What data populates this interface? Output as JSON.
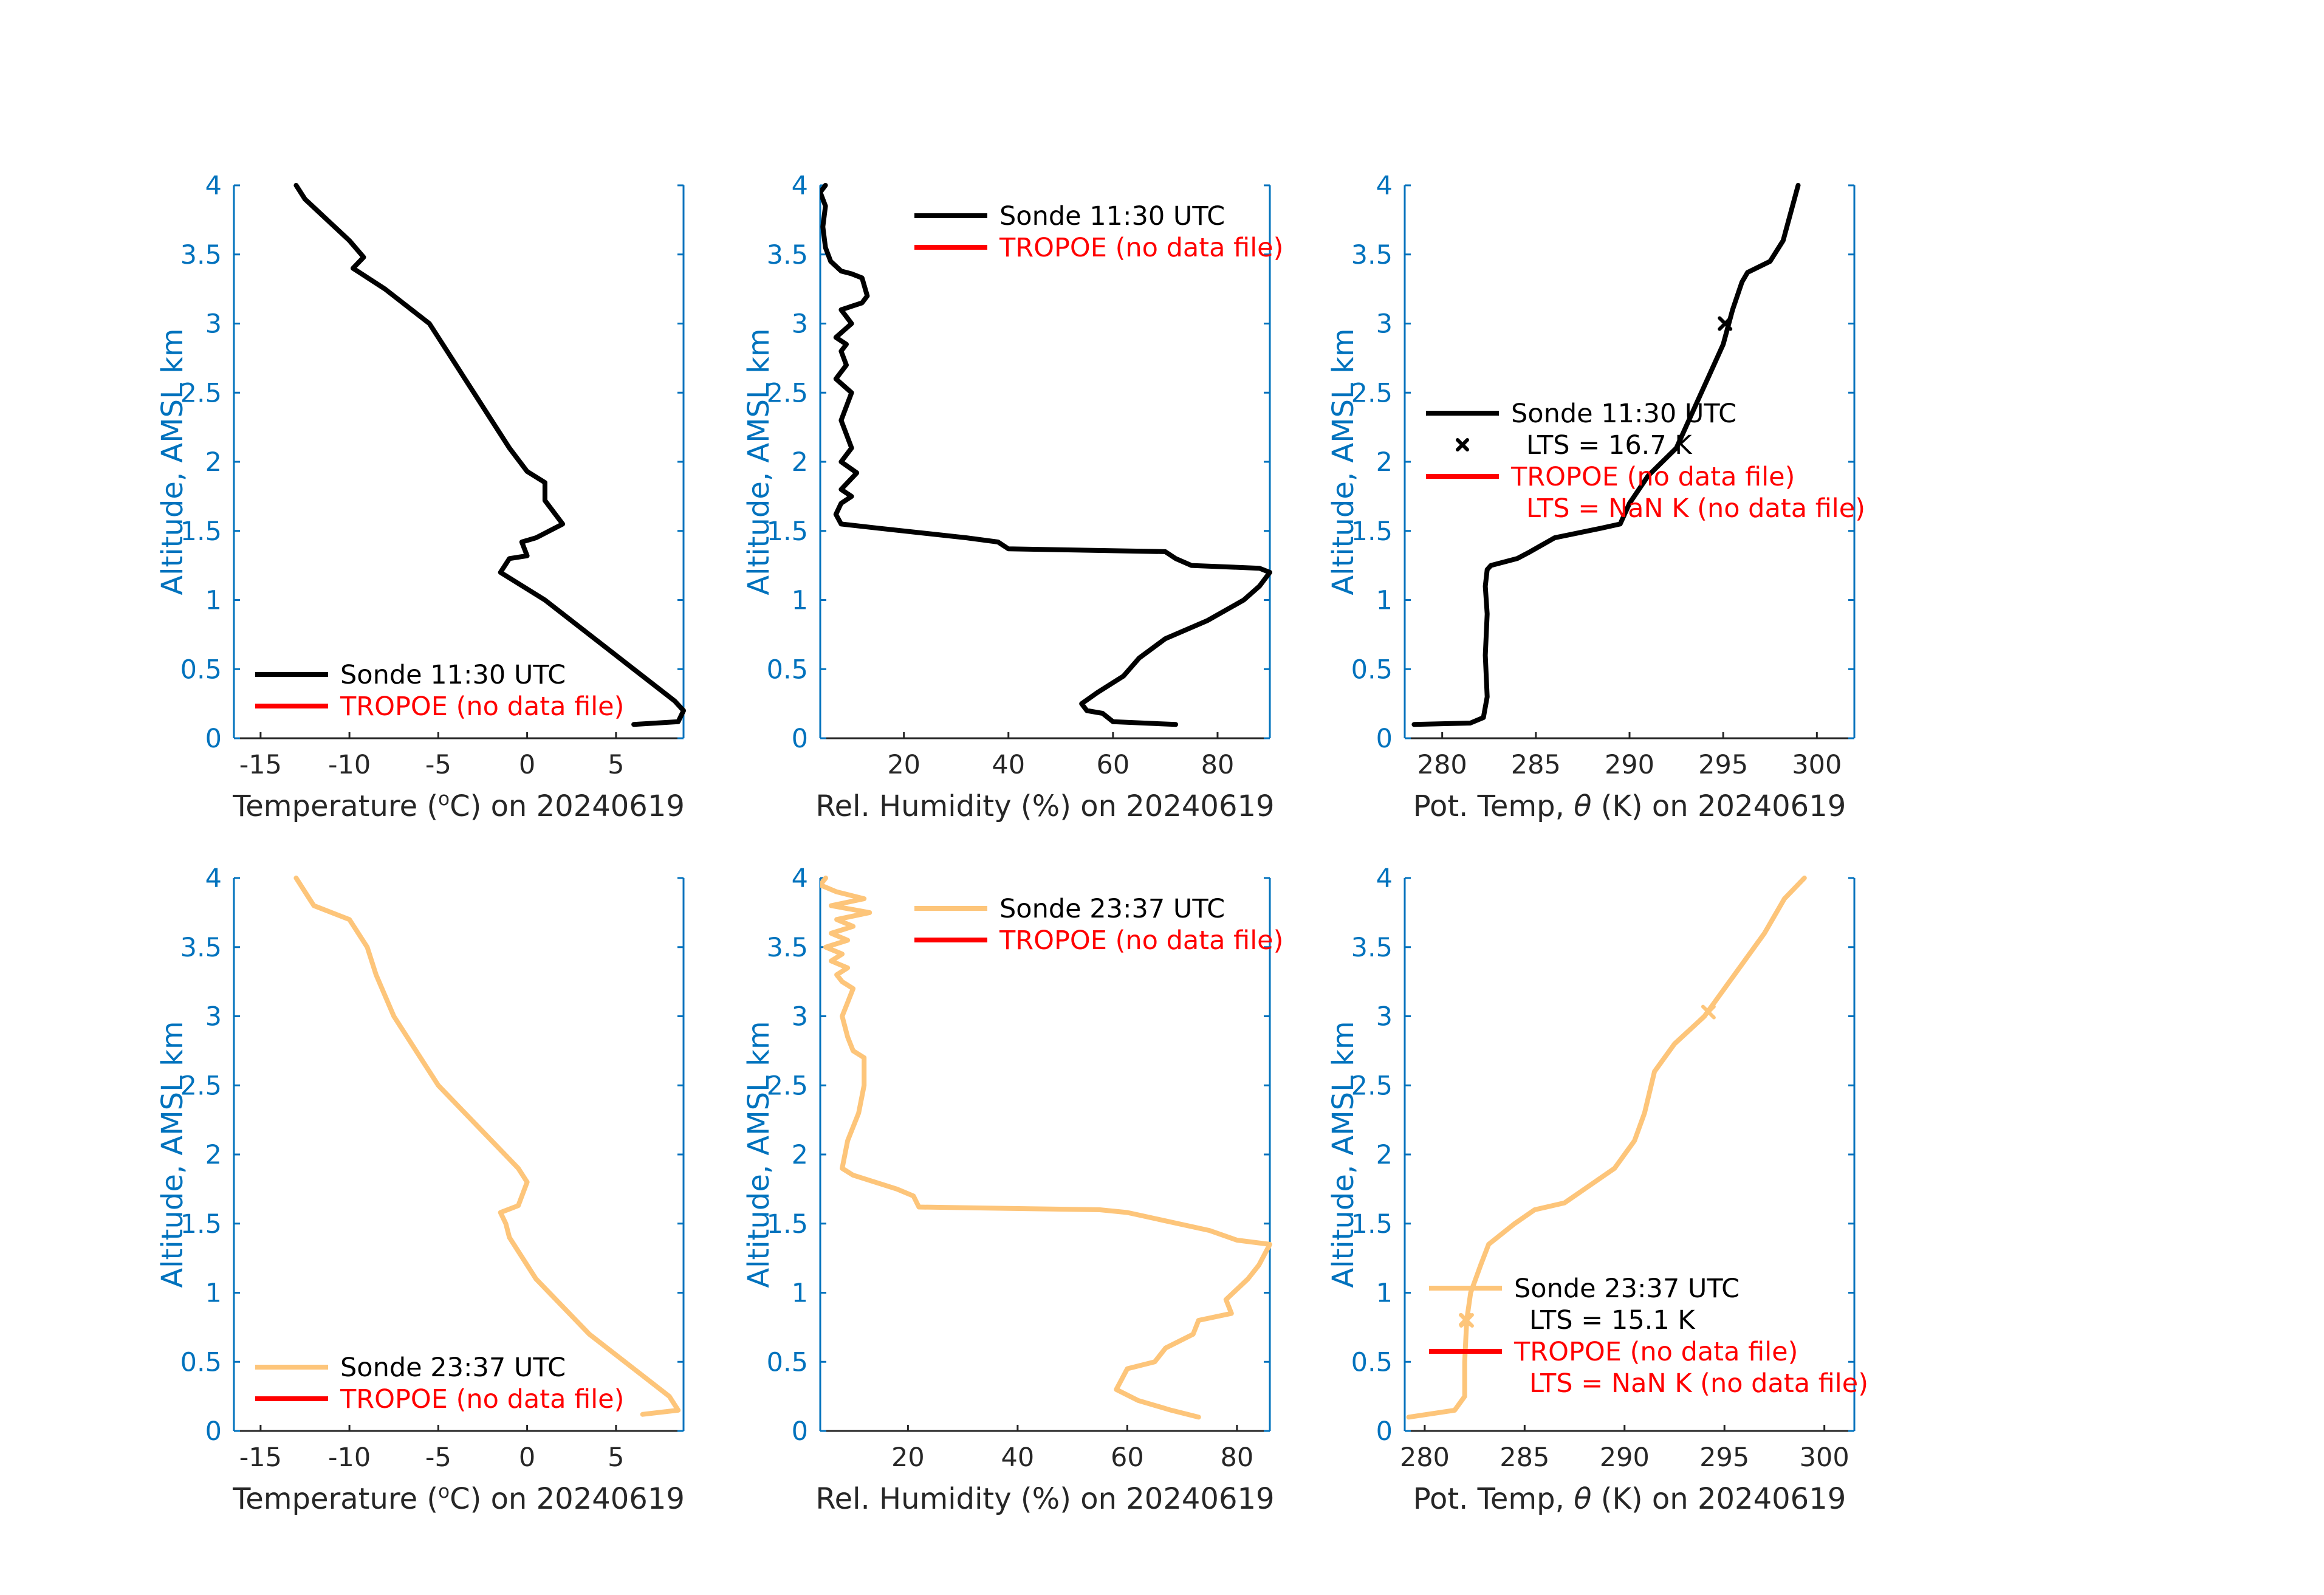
{
  "colors": {
    "axis": "#0072BD",
    "morning_sonde": "#000000",
    "evening_sonde": "#FDC57A",
    "tropoe": "#FF0000",
    "text": "#262626",
    "background": "#FFFFFF"
  },
  "chart_data": [
    {
      "id": "temp-1130",
      "type": "line",
      "xlabel": "Temperature (°C) on 20240619",
      "ylabel": "Altitude, AMSL km",
      "xlim": [
        -16.5,
        8.8
      ],
      "ylim": [
        0,
        4
      ],
      "xticks": [
        -15,
        -10,
        -5,
        0,
        5
      ],
      "xtick_labels": [
        "-15",
        "-10",
        "-5",
        "0",
        "5"
      ],
      "yticks": [
        0,
        0.5,
        1,
        1.5,
        2,
        2.5,
        3,
        3.5,
        4
      ],
      "ytick_labels": [
        "0",
        "0.5",
        "1",
        "1.5",
        "2",
        "2.5",
        "3",
        "3.5",
        "4"
      ],
      "legend": {
        "position": "bottom-right",
        "entries": [
          {
            "text": "Sonde 11:30 UTC",
            "line_color": "#000000",
            "text_color": "#000000"
          },
          {
            "text": "TROPOE (no data file)",
            "line_color": "#FF0000",
            "text_color": "#FF0000"
          }
        ]
      },
      "series": [
        {
          "name": "Sonde 11:30 UTC",
          "color": "#000000",
          "x": [
            6.0,
            8.5,
            8.8,
            8.3,
            6.0,
            3.5,
            1.0,
            -1.5,
            -1.0,
            0.0,
            -0.3,
            0.5,
            2.0,
            1.0,
            1.0,
            0.0,
            -1.0,
            -2.0,
            -3.0,
            -3.5,
            -4.5,
            -5.5,
            -6.5,
            -8.0,
            -9.8,
            -9.2,
            -10.0,
            -12.5,
            -13.0
          ],
          "y": [
            0.1,
            0.12,
            0.2,
            0.27,
            0.5,
            0.75,
            1.0,
            1.2,
            1.3,
            1.32,
            1.42,
            1.45,
            1.55,
            1.72,
            1.85,
            1.93,
            2.1,
            2.3,
            2.5,
            2.6,
            2.8,
            3.0,
            3.1,
            3.25,
            3.4,
            3.48,
            3.6,
            3.9,
            4.0
          ]
        }
      ]
    },
    {
      "id": "rh-1130",
      "type": "line",
      "xlabel": "Rel. Humidity (%) on 20240619",
      "ylabel": "Altitude, AMSL km",
      "xlim": [
        4,
        90
      ],
      "ylim": [
        0,
        4
      ],
      "xticks": [
        20,
        40,
        60,
        80
      ],
      "xtick_labels": [
        "20",
        "40",
        "60",
        "80"
      ],
      "yticks": [
        0,
        0.5,
        1,
        1.5,
        2,
        2.5,
        3,
        3.5,
        4
      ],
      "ytick_labels": [
        "0",
        "0.5",
        "1",
        "1.5",
        "2",
        "2.5",
        "3",
        "3.5",
        "4"
      ],
      "legend": {
        "position": "top-right",
        "entries": [
          {
            "text": "Sonde 11:30 UTC",
            "line_color": "#000000",
            "text_color": "#000000"
          },
          {
            "text": "TROPOE (no data file)",
            "line_color": "#FF0000",
            "text_color": "#FF0000"
          }
        ]
      },
      "series": [
        {
          "name": "Sonde 11:30 UTC",
          "color": "#000000",
          "x": [
            72,
            60,
            58,
            55,
            54,
            57,
            62,
            65,
            70,
            78,
            85,
            88,
            90,
            88,
            75,
            72,
            70,
            40,
            38,
            32,
            15,
            8,
            7,
            8,
            10,
            8,
            11,
            8,
            10,
            8,
            10,
            7,
            9,
            8,
            9,
            7,
            10,
            8,
            12,
            13,
            12,
            10,
            8,
            6,
            5,
            4.5,
            5,
            4,
            5
          ],
          "y": [
            0.1,
            0.12,
            0.18,
            0.2,
            0.25,
            0.33,
            0.45,
            0.58,
            0.72,
            0.85,
            1.0,
            1.1,
            1.2,
            1.23,
            1.25,
            1.3,
            1.35,
            1.37,
            1.42,
            1.45,
            1.52,
            1.55,
            1.62,
            1.7,
            1.75,
            1.8,
            1.92,
            2.0,
            2.1,
            2.3,
            2.5,
            2.6,
            2.7,
            2.8,
            2.85,
            2.9,
            3.0,
            3.1,
            3.15,
            3.2,
            3.33,
            3.36,
            3.38,
            3.45,
            3.55,
            3.7,
            3.85,
            3.95,
            4.0
          ]
        }
      ]
    },
    {
      "id": "theta-1130",
      "type": "line",
      "xlabel": "Pot. Temp, θ (K) on 20240619",
      "ylabel": "Altitude, AMSL km",
      "xlim": [
        278,
        302
      ],
      "ylim": [
        0,
        4
      ],
      "xticks": [
        280,
        285,
        290,
        295,
        300
      ],
      "xtick_labels": [
        "280",
        "285",
        "290",
        "295",
        "300"
      ],
      "yticks": [
        0,
        0.5,
        1,
        1.5,
        2,
        2.5,
        3,
        3.5,
        4
      ],
      "ytick_labels": [
        "0",
        "0.5",
        "1",
        "1.5",
        "2",
        "2.5",
        "3",
        "3.5",
        "4"
      ],
      "legend": {
        "position": "middle-left",
        "entries": [
          {
            "text": "Sonde 11:30 UTC",
            "line_color": "#000000",
            "text_color": "#000000",
            "marker": "line"
          },
          {
            "text": "LTS = 16.7 K",
            "line_color": "#000000",
            "text_color": "#000000",
            "marker": "x"
          },
          {
            "text": "TROPOE (no data file)",
            "line_color": "#FF0000",
            "text_color": "#FF0000",
            "marker": "line"
          },
          {
            "text": "LTS = NaN K (no data file)",
            "line_color": "#FF0000",
            "text_color": "#FF0000",
            "marker": "none"
          }
        ]
      },
      "markers": [
        {
          "x": 295.1,
          "y": 3.0,
          "shape": "x",
          "color": "#000000"
        }
      ],
      "series": [
        {
          "name": "Sonde 11:30 UTC",
          "color": "#000000",
          "x": [
            278.5,
            281.5,
            282.2,
            282.4,
            282.3,
            282.4,
            282.3,
            282.4,
            282.6,
            284.0,
            284.7,
            286.0,
            288.5,
            289.5,
            290.0,
            291.0,
            292.5,
            293.5,
            294.5,
            295.0,
            295.5,
            296.0,
            296.3,
            297.5,
            298.2,
            298.8,
            299.0
          ],
          "y": [
            0.1,
            0.11,
            0.15,
            0.3,
            0.6,
            0.9,
            1.1,
            1.22,
            1.25,
            1.3,
            1.35,
            1.45,
            1.52,
            1.55,
            1.7,
            1.9,
            2.1,
            2.4,
            2.7,
            2.85,
            3.1,
            3.3,
            3.37,
            3.45,
            3.6,
            3.9,
            4.0
          ]
        }
      ]
    },
    {
      "id": "temp-2337",
      "type": "line",
      "xlabel": "Temperature (°C) on 20240619",
      "ylabel": "Altitude, AMSL km",
      "xlim": [
        -16.5,
        8.8
      ],
      "ylim": [
        0,
        4
      ],
      "xticks": [
        -15,
        -10,
        -5,
        0,
        5
      ],
      "xtick_labels": [
        "-15",
        "-10",
        "-5",
        "0",
        "5"
      ],
      "yticks": [
        0,
        0.5,
        1,
        1.5,
        2,
        2.5,
        3,
        3.5,
        4
      ],
      "ytick_labels": [
        "0",
        "0.5",
        "1",
        "1.5",
        "2",
        "2.5",
        "3",
        "3.5",
        "4"
      ],
      "legend": {
        "position": "bottom-right",
        "entries": [
          {
            "text": "Sonde 23:37 UTC",
            "line_color": "#FDC57A",
            "text_color": "#000000"
          },
          {
            "text": "TROPOE (no data file)",
            "line_color": "#FF0000",
            "text_color": "#FF0000"
          }
        ]
      },
      "series": [
        {
          "name": "Sonde 23:37 UTC",
          "color": "#FDC57A",
          "x": [
            6.5,
            8.5,
            8.0,
            6.0,
            3.5,
            2.0,
            0.5,
            -0.5,
            -1.0,
            -1.2,
            -1.5,
            -0.5,
            0.0,
            -0.5,
            -2.0,
            -3.5,
            -5.0,
            -6.0,
            -7.5,
            -8.5,
            -9.0,
            -10.0,
            -12.0,
            -12.5,
            -13.0
          ],
          "y": [
            0.12,
            0.15,
            0.25,
            0.45,
            0.7,
            0.9,
            1.1,
            1.3,
            1.4,
            1.5,
            1.58,
            1.63,
            1.8,
            1.9,
            2.1,
            2.3,
            2.5,
            2.7,
            3.0,
            3.3,
            3.5,
            3.7,
            3.8,
            3.9,
            4.0
          ]
        }
      ]
    },
    {
      "id": "rh-2337",
      "type": "line",
      "xlabel": "Rel. Humidity (%) on 20240619",
      "ylabel": "Altitude, AMSL km",
      "xlim": [
        4,
        86
      ],
      "ylim": [
        0,
        4
      ],
      "xticks": [
        20,
        40,
        60,
        80
      ],
      "xtick_labels": [
        "20",
        "40",
        "60",
        "80"
      ],
      "yticks": [
        0,
        0.5,
        1,
        1.5,
        2,
        2.5,
        3,
        3.5,
        4
      ],
      "ytick_labels": [
        "0",
        "0.5",
        "1",
        "1.5",
        "2",
        "2.5",
        "3",
        "3.5",
        "4"
      ],
      "legend": {
        "position": "top-right",
        "entries": [
          {
            "text": "Sonde 23:37 UTC",
            "line_color": "#FDC57A",
            "text_color": "#000000"
          },
          {
            "text": "TROPOE (no data file)",
            "line_color": "#FF0000",
            "text_color": "#FF0000"
          }
        ]
      },
      "series": [
        {
          "name": "Sonde 23:37 UTC",
          "color": "#FDC57A",
          "x": [
            73,
            68,
            62,
            58,
            60,
            65,
            67,
            72,
            73,
            79,
            78,
            82,
            84,
            86,
            80,
            75,
            60,
            55,
            22,
            21,
            18,
            10,
            8,
            9,
            11,
            12,
            12,
            10,
            9,
            8,
            9,
            10,
            8,
            7,
            9,
            6,
            8,
            5,
            9,
            6,
            10,
            7,
            13,
            6,
            12,
            7,
            4,
            5
          ],
          "y": [
            0.1,
            0.15,
            0.22,
            0.3,
            0.45,
            0.5,
            0.6,
            0.7,
            0.8,
            0.85,
            0.95,
            1.1,
            1.2,
            1.35,
            1.38,
            1.45,
            1.58,
            1.6,
            1.62,
            1.7,
            1.75,
            1.85,
            1.9,
            2.1,
            2.3,
            2.5,
            2.7,
            2.75,
            2.85,
            3.0,
            3.1,
            3.2,
            3.25,
            3.3,
            3.35,
            3.4,
            3.45,
            3.5,
            3.55,
            3.6,
            3.65,
            3.7,
            3.75,
            3.8,
            3.85,
            3.9,
            3.95,
            4.0
          ]
        }
      ]
    },
    {
      "id": "theta-2337",
      "type": "line",
      "xlabel": "Pot. Temp, θ (K) on 20240619",
      "ylabel": "Altitude, AMSL km",
      "xlim": [
        279,
        301.5
      ],
      "ylim": [
        0,
        4
      ],
      "xticks": [
        280,
        285,
        290,
        295,
        300
      ],
      "xtick_labels": [
        "280",
        "285",
        "290",
        "295",
        "300"
      ],
      "yticks": [
        0,
        0.5,
        1,
        1.5,
        2,
        2.5,
        3,
        3.5,
        4
      ],
      "ytick_labels": [
        "0",
        "0.5",
        "1",
        "1.5",
        "2",
        "2.5",
        "3",
        "3.5",
        "4"
      ],
      "legend": {
        "position": "bottom-left",
        "entries": [
          {
            "text": "Sonde 23:37 UTC",
            "line_color": "#FDC57A",
            "text_color": "#000000",
            "marker": "line"
          },
          {
            "text": "LTS = 15.1 K",
            "line_color": "#FDC57A",
            "text_color": "#000000",
            "marker": "x"
          },
          {
            "text": "TROPOE (no data file)",
            "line_color": "#FF0000",
            "text_color": "#FF0000",
            "marker": "line"
          },
          {
            "text": "LTS = NaN K (no data file)",
            "line_color": "#FF0000",
            "text_color": "#FF0000",
            "marker": "none"
          }
        ]
      },
      "markers": [
        {
          "x": 282.1,
          "y": 0.8,
          "shape": "x",
          "color": "#FDC57A"
        },
        {
          "x": 294.2,
          "y": 3.03,
          "shape": "x",
          "color": "#FDC57A"
        }
      ],
      "series": [
        {
          "name": "Sonde 23:37 UTC",
          "color": "#FDC57A",
          "x": [
            279.2,
            281.5,
            282.0,
            282.0,
            282.1,
            282.3,
            282.8,
            283.2,
            284.5,
            285.5,
            287.0,
            288.5,
            289.5,
            290.5,
            291.0,
            291.5,
            292.5,
            294.0,
            295.0,
            296.0,
            297.0,
            298.0,
            299.0
          ],
          "y": [
            0.1,
            0.15,
            0.25,
            0.5,
            0.8,
            1.0,
            1.2,
            1.35,
            1.5,
            1.6,
            1.65,
            1.8,
            1.9,
            2.1,
            2.3,
            2.6,
            2.8,
            3.0,
            3.2,
            3.4,
            3.6,
            3.85,
            4.0
          ]
        }
      ]
    }
  ]
}
